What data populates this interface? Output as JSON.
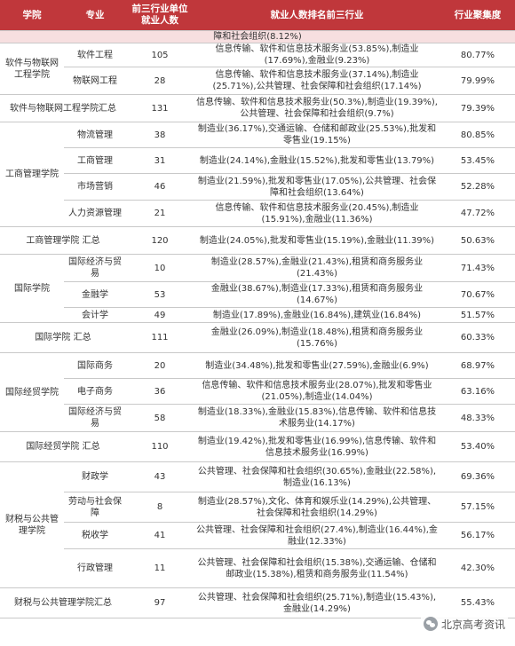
{
  "header": {
    "school": "学院",
    "major": "专业",
    "count": "前三行业单位就业人数",
    "industries": "就业人数排名前三行业",
    "concentration": "行业聚集度"
  },
  "continuation": "障和社会组织(8.12%)",
  "rows": [
    {
      "major": "软件工程",
      "count": "105",
      "industries": "信息传输、软件和信息技术服务业(53.85%),制造业(17.69%),金融业(9.23%)",
      "conc": "80.77%"
    },
    {
      "major": "物联网工程",
      "count": "28",
      "industries": "信息传输、软件和信息技术服务业(37.14%),制造业(25.71%),公共管理、社会保障和社会组织(17.14%)",
      "conc": "79.99%"
    },
    {
      "summary": "软件与物联网工程学院汇总",
      "count": "131",
      "industries": "信息传输、软件和信息技术服务业(50.3%),制造业(19.39%),公共管理、社会保障和社会组织(9.7%)",
      "conc": "79.39%"
    },
    {
      "major": "物流管理",
      "count": "38",
      "industries": "制造业(36.17%),交通运输、仓储和邮政业(25.53%),批发和零售业(19.15%)",
      "conc": "80.85%"
    },
    {
      "major": "工商管理",
      "count": "31",
      "industries": "制造业(24.14%),金融业(15.52%),批发和零售业(13.79%)",
      "conc": "53.45%"
    },
    {
      "major": "市场营销",
      "count": "46",
      "industries": "制造业(21.59%),批发和零售业(17.05%),公共管理、社会保障和社会组织(13.64%)",
      "conc": "52.28%"
    },
    {
      "major": "人力资源管理",
      "count": "21",
      "industries": "信息传输、软件和信息技术服务业(20.45%),制造业(15.91%),金融业(11.36%)",
      "conc": "47.72%"
    },
    {
      "summary": "工商管理学院  汇总",
      "count": "120",
      "industries": "制造业(24.05%),批发和零售业(15.19%),金融业(11.39%)",
      "conc": "50.63%"
    },
    {
      "major": "国际经济与贸易",
      "count": "10",
      "industries": "制造业(28.57%),金融业(21.43%),租赁和商务服务业(21.43%)",
      "conc": "71.43%"
    },
    {
      "major": "金融学",
      "count": "53",
      "industries": "金融业(38.67%),制造业(17.33%),租赁和商务服务业(14.67%)",
      "conc": "70.67%"
    },
    {
      "major": "会计学",
      "count": "49",
      "industries": "制造业(17.89%),金融业(16.84%),建筑业(16.84%)",
      "conc": "51.57%"
    },
    {
      "summary": "国际学院  汇总",
      "count": "111",
      "industries": "金融业(26.09%),制造业(18.48%),租赁和商务服务业(15.76%)",
      "conc": "60.33%"
    },
    {
      "major": "国际商务",
      "count": "20",
      "industries": "制造业(34.48%),批发和零售业(27.59%),金融业(6.9%)",
      "conc": "68.97%"
    },
    {
      "major": "电子商务",
      "count": "36",
      "industries": "信息传输、软件和信息技术服务业(28.07%),批发和零售业(21.05%),制造业(14.04%)",
      "conc": "63.16%"
    },
    {
      "major": "国际经济与贸易",
      "count": "58",
      "industries": "制造业(18.33%),金融业(15.83%),信息传输、软件和信息技术服务业(14.17%)",
      "conc": "48.33%"
    },
    {
      "summary": "国际经贸学院  汇总",
      "count": "110",
      "industries": "制造业(19.42%),批发和零售业(16.99%),信息传输、软件和信息技术服务业(16.99%)",
      "conc": "53.40%"
    },
    {
      "major": "财政学",
      "count": "43",
      "industries": "公共管理、社会保障和社会组织(30.65%),金融业(22.58%),制造业(16.13%)",
      "conc": "69.36%"
    },
    {
      "major": "劳动与社会保障",
      "count": "8",
      "industries": "制造业(28.57%),文化、体育和娱乐业(14.29%),公共管理、社会保障和社会组织(14.29%)",
      "conc": "57.15%"
    },
    {
      "major": "税收学",
      "count": "41",
      "industries": "公共管理、社会保障和社会组织(27.4%),制造业(16.44%),金融业(12.33%)",
      "conc": "56.17%"
    },
    {
      "major": "行政管理",
      "count": "11",
      "industries": "公共管理、社会保障和社会组织(15.38%),交通运输、仓储和邮政业(15.38%),租赁和商务服务业(11.54%)",
      "conc": "42.30%"
    },
    {
      "summary": "财税与公共管理学院汇总",
      "count": "97",
      "industries": "公共管理、社会保障和社会组织(25.71%),制造业(15.43%),金融业(14.29%)",
      "conc": "55.43%"
    }
  ],
  "schools": [
    "软件与物联网工程学院",
    "工商管理学院",
    "国际学院",
    "国际经贸学院",
    "财税与公共管理学院"
  ],
  "watermark": "北京高考资讯"
}
